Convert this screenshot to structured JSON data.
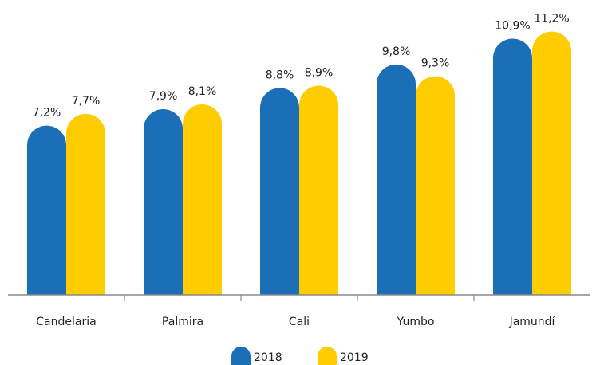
{
  "chart_data": {
    "type": "bar",
    "categories": [
      "Candelaria",
      "Palmira",
      "Cali",
      "Yumbo",
      "Jamundí"
    ],
    "series": [
      {
        "name": "2018",
        "color": "#1b6fb7",
        "values": [
          7.2,
          7.9,
          8.8,
          9.8,
          10.9
        ],
        "value_labels": [
          "7,2%",
          "7,9%",
          "8,8%",
          "9,8%",
          "10,9%"
        ]
      },
      {
        "name": "2019",
        "color": "#ffcc00",
        "values": [
          7.7,
          8.1,
          8.9,
          9.3,
          11.2
        ],
        "value_labels": [
          "7,7%",
          "8,1%",
          "8,9%",
          "9,3%",
          "11,2%"
        ]
      }
    ],
    "legend": "bottom"
  }
}
